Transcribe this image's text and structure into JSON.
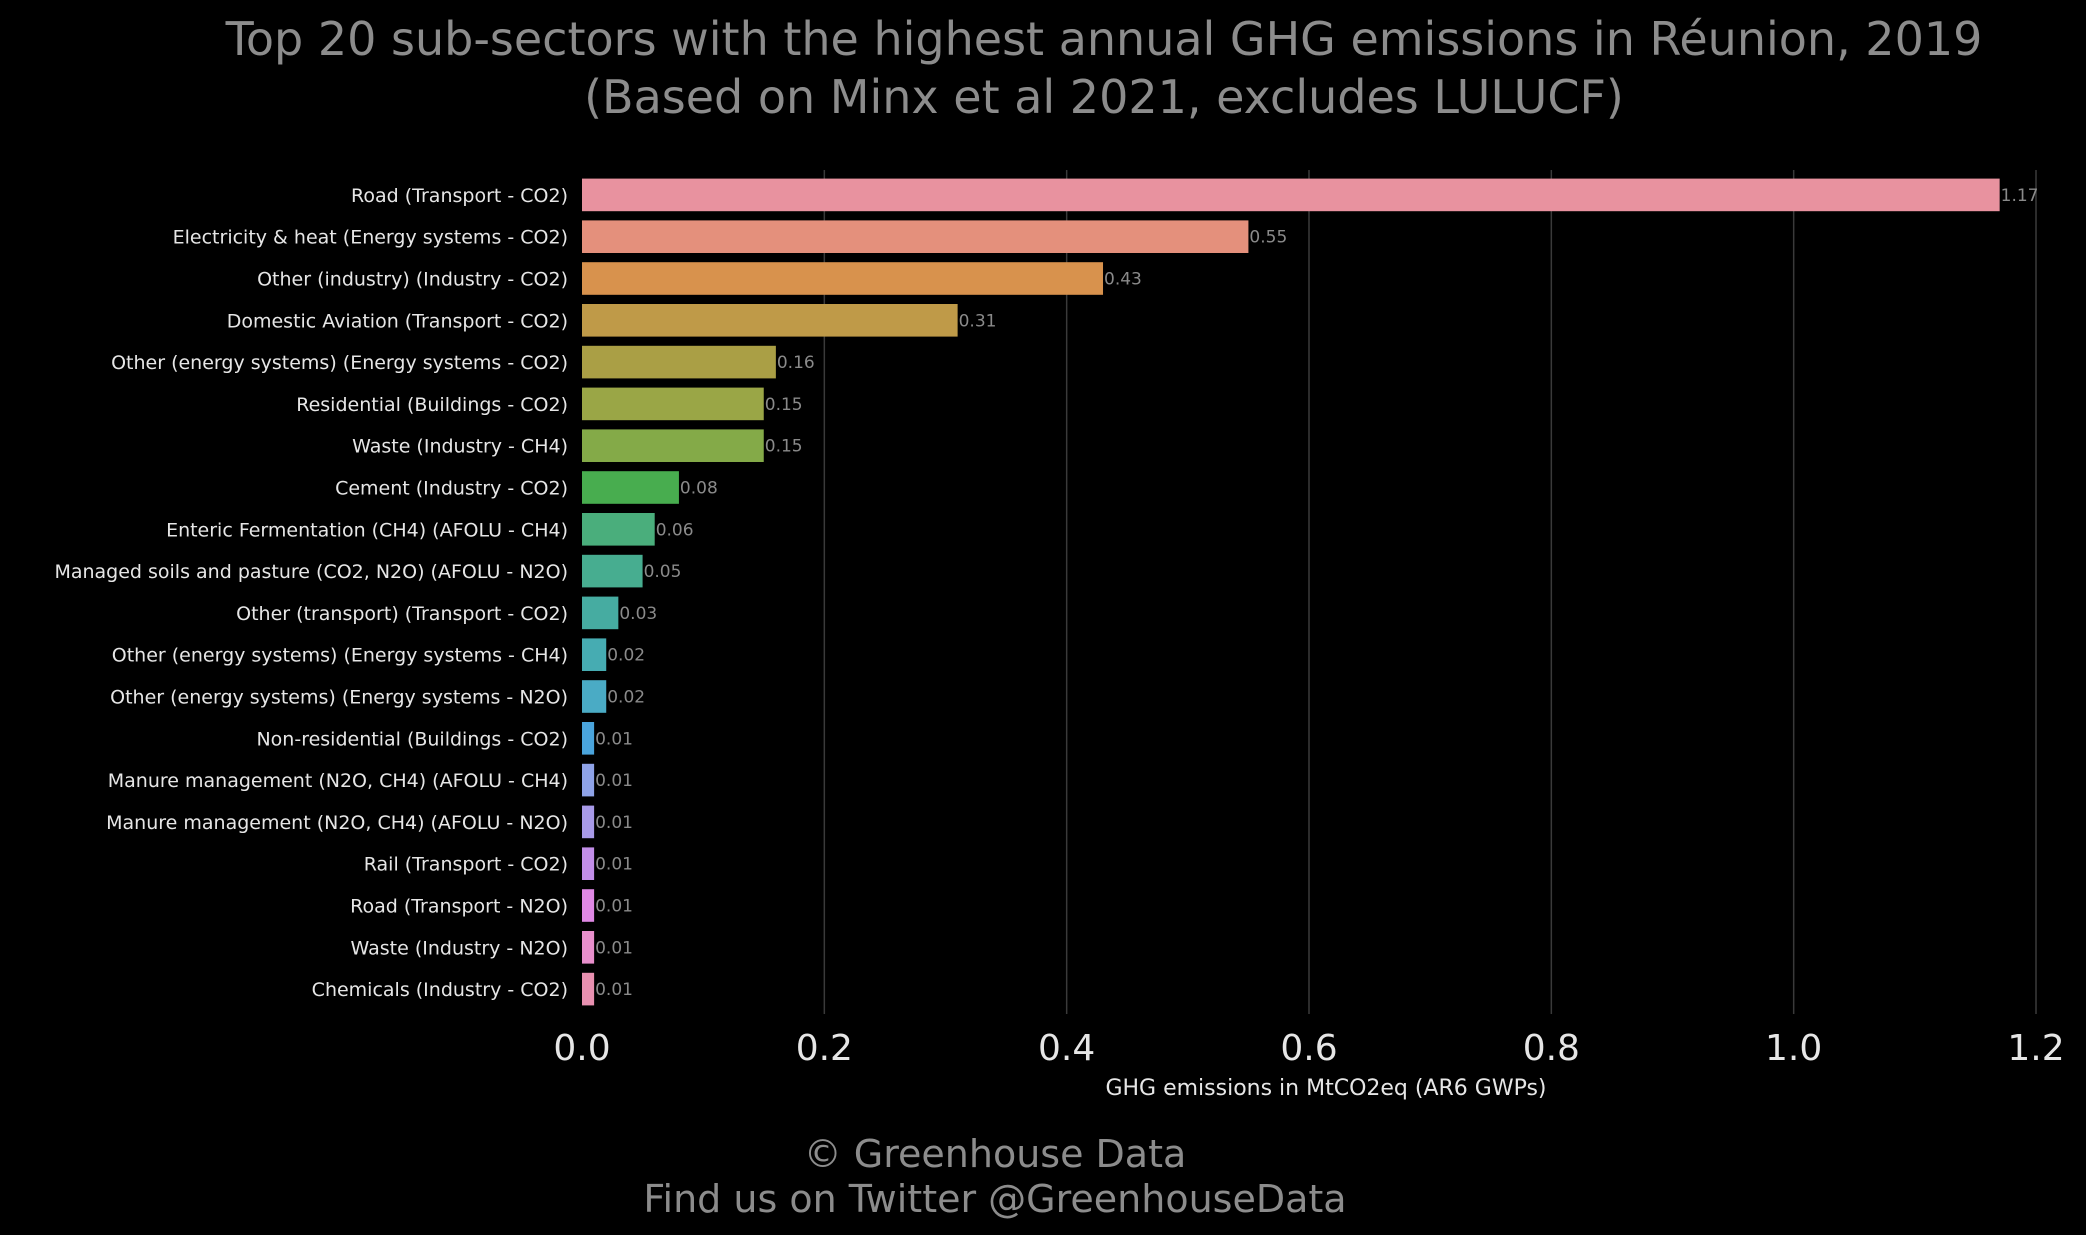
{
  "chart_data": {
    "type": "bar",
    "orientation": "horizontal",
    "title": "Top 20 sub-sectors with the highest annual GHG emissions in Réunion, 2019",
    "subtitle": "(Based on Minx et al 2021, excludes LULUCF)",
    "xlabel": "GHG emissions in MtCO2eq (AR6 GWPs)",
    "ylabel": "",
    "xlim": [
      0,
      1.2
    ],
    "x_ticks": [
      "0.0",
      "0.2",
      "0.4",
      "0.6",
      "0.8",
      "1.0",
      "1.2"
    ],
    "grid": "vertical",
    "categories": [
      "Road (Transport - CO2)",
      "Electricity & heat (Energy systems - CO2)",
      "Other (industry) (Industry - CO2)",
      "Domestic Aviation (Transport - CO2)",
      "Other (energy systems) (Energy systems - CO2)",
      "Residential (Buildings - CO2)",
      "Waste (Industry - CH4)",
      "Cement (Industry - CO2)",
      "Enteric Fermentation (CH4) (AFOLU - CH4)",
      "Managed soils and pasture (CO2, N2O) (AFOLU - N2O)",
      "Other (transport) (Transport - CO2)",
      "Other (energy systems) (Energy systems - CH4)",
      "Other (energy systems) (Energy systems - N2O)",
      "Non-residential (Buildings - CO2)",
      "Manure management (N2O, CH4) (AFOLU - CH4)",
      "Manure management (N2O, CH4) (AFOLU - N2O)",
      "Rail  (Transport - CO2)",
      "Road (Transport - N2O)",
      "Waste (Industry - N2O)",
      "Chemicals (Industry - CO2)"
    ],
    "values": [
      1.17,
      0.55,
      0.43,
      0.31,
      0.16,
      0.15,
      0.15,
      0.08,
      0.06,
      0.05,
      0.03,
      0.02,
      0.02,
      0.01,
      0.01,
      0.01,
      0.01,
      0.01,
      0.01,
      0.01
    ],
    "value_labels": [
      "1.17",
      "0.55",
      "0.43",
      "0.31",
      "0.16",
      "0.15",
      "0.15",
      "0.08",
      "0.06",
      "0.05",
      "0.03",
      "0.02",
      "0.02",
      "0.01",
      "0.01",
      "0.01",
      "0.01",
      "0.01",
      "0.01",
      "0.01"
    ],
    "colors": [
      "#e8929f",
      "#e4907c",
      "#d8924d",
      "#bf9a48",
      "#aa9f45",
      "#9aa646",
      "#84aa48",
      "#48ad4f",
      "#4aae7c",
      "#47ad90",
      "#46aca1",
      "#46acb2",
      "#4aabc5",
      "#4aa4dc",
      "#8fa3e8",
      "#a89ae8",
      "#c28ee8",
      "#df88e4",
      "#e88fcc",
      "#e890b0"
    ]
  },
  "footer": {
    "copyright": "© Greenhouse Data",
    "twitter": "Find us on Twitter @GreenhouseData"
  }
}
